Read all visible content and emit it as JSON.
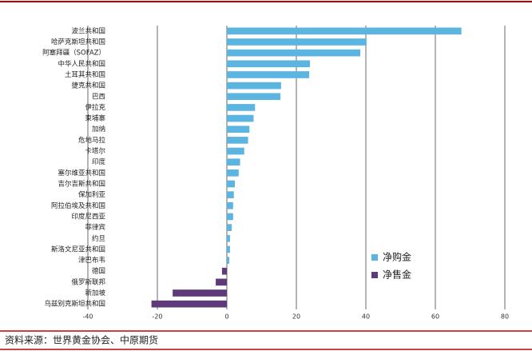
{
  "chart_data": {
    "type": "hbar",
    "categories": [
      "波兰共和国",
      "哈萨克斯坦共和国",
      "阿塞拜疆（SOFAZ）",
      "中华人民共和国",
      "土耳其共和国",
      "捷克共和国",
      "巴西",
      "伊拉克",
      "柬埔寨",
      "加纳",
      "危地马拉",
      "卡塔尔",
      "印度",
      "塞尔维亚共和国",
      "吉尔吉斯共和国",
      "保加利亚",
      "阿拉伯埃及共和国",
      "印度尼西亚",
      "菲律宾",
      "约旦",
      "斯洛文尼亚共和国",
      "津巴布韦",
      "德国",
      "俄罗斯联邦",
      "新加坡",
      "乌兹别克斯坦共和国"
    ],
    "series": [
      {
        "name": "净购金",
        "color": "#5bb5e0",
        "values": [
          67.5,
          40.2,
          38.4,
          23.9,
          23.7,
          15.6,
          15.4,
          8.1,
          7.7,
          6.5,
          6.1,
          5.0,
          3.8,
          3.4,
          2.3,
          2.0,
          1.8,
          1.8,
          1.4,
          0.9,
          0.9,
          0.7,
          null,
          null,
          null,
          null
        ]
      },
      {
        "name": "净售金",
        "color": "#5e3a7a",
        "values": [
          null,
          null,
          null,
          null,
          null,
          null,
          null,
          null,
          null,
          null,
          null,
          null,
          null,
          null,
          null,
          null,
          null,
          null,
          null,
          null,
          null,
          null,
          -1.4,
          -3.2,
          -15.6,
          -21.7
        ]
      }
    ],
    "xlim": [
      -40,
      80
    ],
    "xticks": [
      -40,
      -20,
      0,
      20,
      40,
      60,
      80
    ],
    "grid": true,
    "legend": "lower-right"
  },
  "source": "资料来源：世界黄金协会、中原期货"
}
